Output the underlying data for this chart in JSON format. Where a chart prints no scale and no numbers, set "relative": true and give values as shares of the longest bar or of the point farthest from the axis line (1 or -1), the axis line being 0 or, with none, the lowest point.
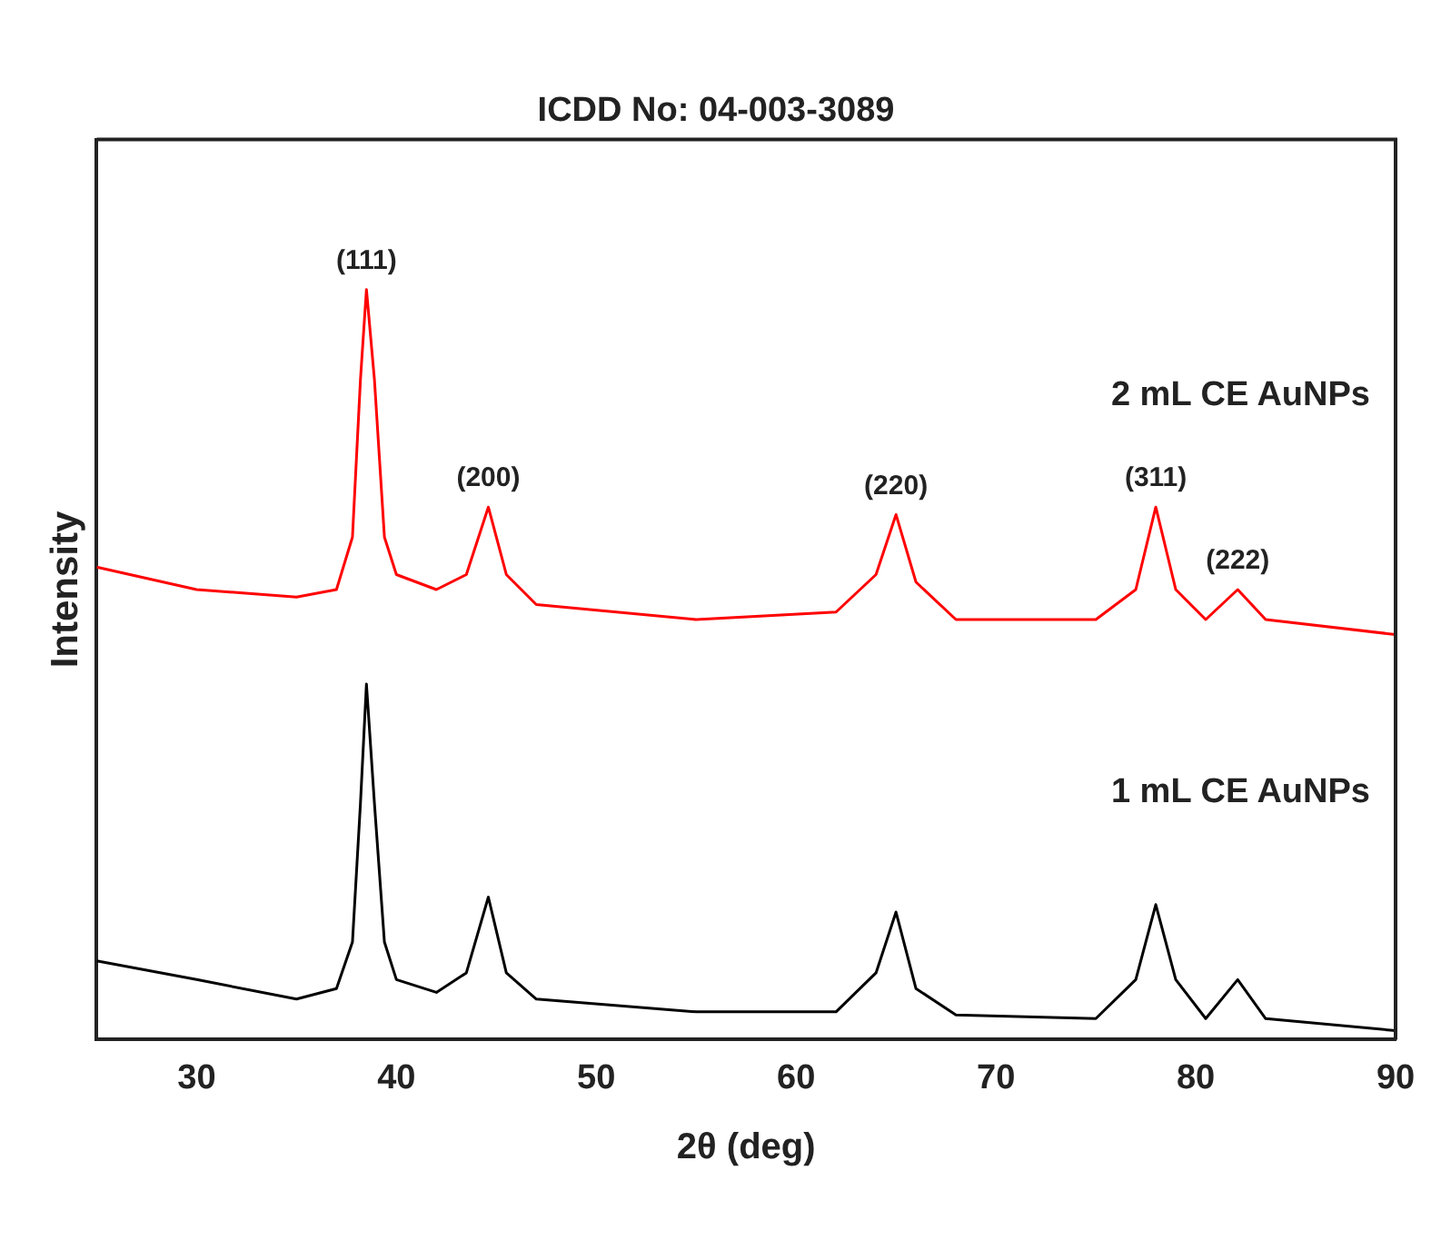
{
  "chart_data": {
    "type": "line",
    "title": "ICDD No: 04-003-3089",
    "xlabel": "2θ (deg)",
    "ylabel": "Intensity",
    "relative": true,
    "xlim": [
      25,
      90
    ],
    "xticks": [
      30,
      40,
      50,
      60,
      70,
      80,
      90
    ],
    "grid": false,
    "legend": false,
    "marker": "none",
    "line_style": "solid",
    "x": [
      25,
      30,
      35,
      37,
      37.8,
      38.2,
      38.5,
      38.9,
      39.4,
      40,
      42,
      43.5,
      44.6,
      45.5,
      47,
      55,
      62,
      64,
      65,
      66,
      68,
      75,
      77,
      78,
      79,
      80.5,
      82.1,
      83.5,
      90
    ],
    "series": [
      {
        "name": "2 mL CE AuNPs",
        "color": "#ff0000",
        "values": [
          0.63,
          0.6,
          0.59,
          0.6,
          0.67,
          0.88,
          1,
          0.88,
          0.67,
          0.62,
          0.6,
          0.62,
          0.71,
          0.62,
          0.58,
          0.56,
          0.57,
          0.62,
          0.7,
          0.61,
          0.56,
          0.56,
          0.6,
          0.71,
          0.6,
          0.56,
          0.6,
          0.56,
          0.54
        ]
      },
      {
        "name": "1 mL CE AuNPs",
        "color": "#000000",
        "values": [
          0.105,
          0.08,
          0.054,
          0.068,
          0.13,
          0.315,
          0.474,
          0.315,
          0.13,
          0.08,
          0.063,
          0.089,
          0.19,
          0.089,
          0.054,
          0.037,
          0.037,
          0.089,
          0.17,
          0.068,
          0.033,
          0.028,
          0.08,
          0.18,
          0.08,
          0.028,
          0.08,
          0.028,
          0.012
        ]
      }
    ],
    "annotations": [
      {
        "text": "(111)",
        "x": 38.5,
        "y": 1
      },
      {
        "text": "(200)",
        "x": 44.6,
        "y": 0.71
      },
      {
        "text": "(220)",
        "x": 65,
        "y": 0.7
      },
      {
        "text": "(311)",
        "x": 78,
        "y": 0.71
      },
      {
        "text": "(222)",
        "x": 82.1,
        "y": 0.6
      }
    ]
  }
}
